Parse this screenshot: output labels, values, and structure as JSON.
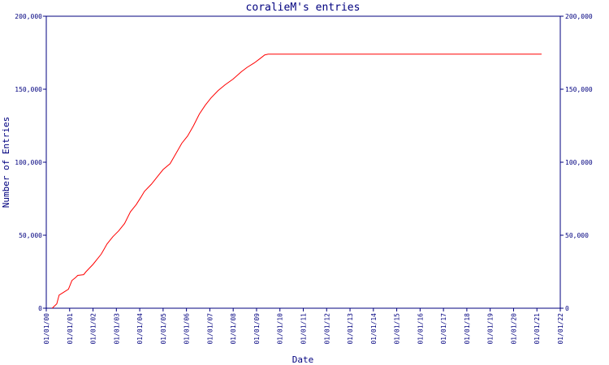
{
  "chart_data": {
    "type": "line",
    "title": "coralieM's entries",
    "xlabel": "Date",
    "ylabel": "Number of Entries",
    "x_ticks": [
      "01/01/00",
      "01/01/01",
      "01/01/02",
      "01/01/03",
      "01/01/04",
      "01/01/05",
      "01/01/06",
      "01/01/07",
      "01/01/08",
      "01/01/09",
      "01/01/10",
      "01/01/11",
      "01/01/12",
      "01/01/13",
      "01/01/14",
      "01/01/15",
      "01/01/16",
      "01/01/17",
      "01/01/18",
      "01/01/19",
      "01/01/20",
      "01/01/21",
      "01/01/22"
    ],
    "y_ticks": [
      "0",
      "50,000",
      "100,000",
      "150,000",
      "200,000"
    ],
    "ylim": [
      0,
      200000
    ],
    "xlim": [
      2000.0,
      2022.0
    ],
    "grid": false,
    "colors": {
      "line": "#ff0000",
      "axis": "#00007f",
      "text": "#00007f"
    },
    "series": [
      {
        "x": [
          2000.25,
          2000.45,
          2000.55,
          2000.75,
          2000.95,
          2001.1,
          2001.25,
          2001.35,
          2001.6,
          2001.7,
          2002.0,
          2002.35,
          2002.6,
          2002.85,
          2003.1,
          2003.35,
          2003.6,
          2003.85,
          2004.05,
          2004.2,
          2004.5,
          2004.8,
          2005.0,
          2005.3,
          2005.55,
          2005.8,
          2006.05,
          2006.3,
          2006.55,
          2006.8,
          2007.05,
          2007.35,
          2007.65,
          2008.0,
          2008.35,
          2008.6,
          2008.9,
          2009.15,
          2009.35,
          2009.5,
          2010.0,
          2012.0,
          2014.0,
          2016.0,
          2018.0,
          2020.0,
          2021.2
        ],
        "y": [
          0,
          3000,
          9000,
          11000,
          13000,
          19000,
          21000,
          22500,
          23000,
          25000,
          30000,
          37000,
          44000,
          49000,
          53000,
          58000,
          66000,
          71000,
          76000,
          80000,
          85000,
          91000,
          95000,
          99000,
          106000,
          113000,
          118000,
          125000,
          133000,
          139000,
          144000,
          149000,
          153000,
          157000,
          162000,
          165000,
          168000,
          171000,
          173500,
          174000,
          174000,
          174000,
          174000,
          174000,
          174000,
          174000,
          174000
        ]
      }
    ]
  }
}
